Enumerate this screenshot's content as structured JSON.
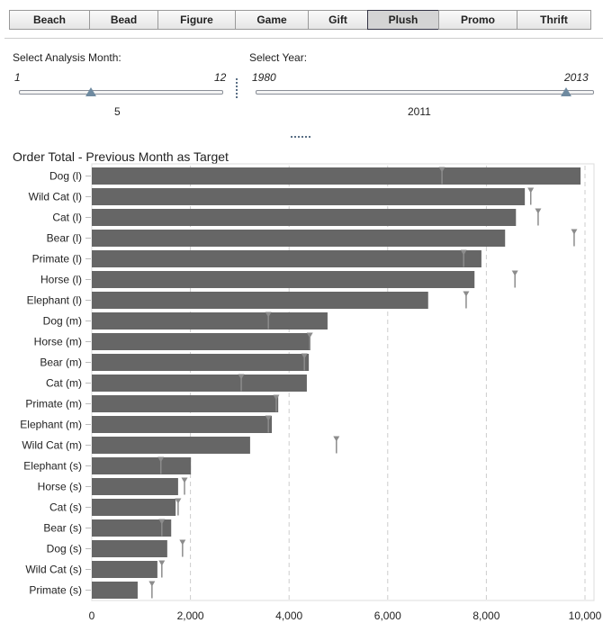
{
  "tabs": [
    {
      "label": "Beach"
    },
    {
      "label": "Bead"
    },
    {
      "label": "Figure"
    },
    {
      "label": "Game"
    },
    {
      "label": "Gift"
    },
    {
      "label": "Plush",
      "active": true
    },
    {
      "label": "Promo"
    },
    {
      "label": "Thrift"
    }
  ],
  "month_slider": {
    "label": "Select Analysis Month:",
    "min": "1",
    "max": "12",
    "value": "5"
  },
  "year_slider": {
    "label": "Select Year:",
    "min": "1980",
    "max": "2013",
    "value": "2011"
  },
  "chart_data": {
    "type": "bar",
    "orientation": "horizontal",
    "title": "Order Total - Previous Month as Target",
    "xlim": [
      0,
      10000
    ],
    "xticks": [
      "0",
      "2,000",
      "4,000",
      "6,000",
      "8,000",
      "10,000"
    ],
    "xtick_values": [
      0,
      2000,
      4000,
      6000,
      8000,
      10000
    ],
    "grid": "vertical dashed",
    "categories": [
      "Dog (l)",
      "Wild Cat (l)",
      "Cat (l)",
      "Bear (l)",
      "Primate (l)",
      "Horse (l)",
      "Elephant (l)",
      "Dog (m)",
      "Horse (m)",
      "Bear (m)",
      "Cat (m)",
      "Primate (m)",
      "Elephant (m)",
      "Wild Cat (m)",
      "Elephant (s)",
      "Horse (s)",
      "Cat (s)",
      "Bear (s)",
      "Dog (s)",
      "Wild Cat (s)",
      "Primate (s)"
    ],
    "series": [
      {
        "name": "Order Total",
        "color": "#666666",
        "values": [
          9910,
          8780,
          8600,
          8380,
          7900,
          7760,
          6820,
          4780,
          4430,
          4400,
          4360,
          3780,
          3650,
          3210,
          2010,
          1750,
          1700,
          1610,
          1530,
          1330,
          930
        ]
      },
      {
        "name": "Previous Month Target",
        "color": "#8c8c8c",
        "values": [
          7100,
          8900,
          9050,
          9780,
          7540,
          8580,
          7590,
          3580,
          4420,
          4310,
          3030,
          3740,
          3580,
          4960,
          1400,
          1880,
          1750,
          1420,
          1840,
          1420,
          1220
        ]
      }
    ]
  }
}
